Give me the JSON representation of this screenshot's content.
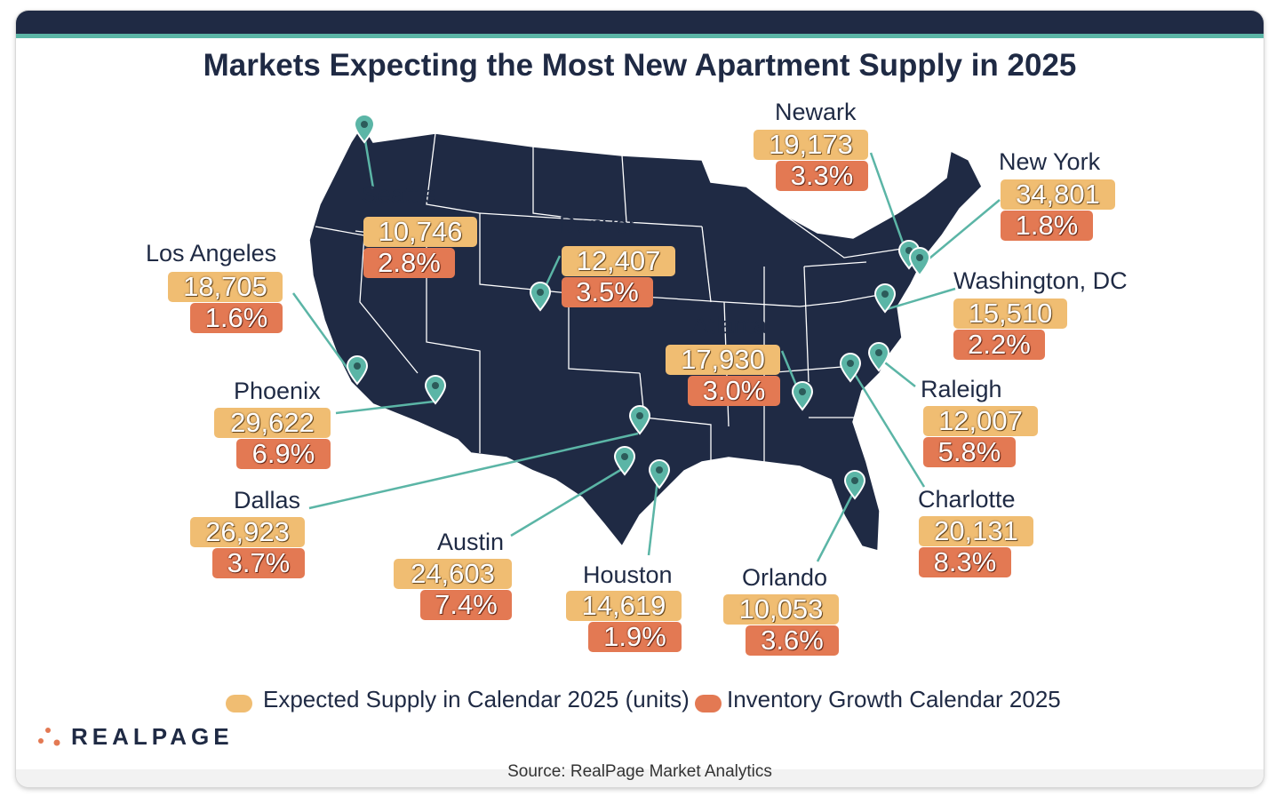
{
  "title": "Markets Expecting the Most New Apartment Supply in 2025",
  "colors": {
    "map_fill": "#1f2a44",
    "state_borders": "#ffffff",
    "marker": "#5bb5a6",
    "supply_pill": "#f0bd72",
    "growth_pill": "#e37953",
    "title_text": "#1f2a44"
  },
  "markets": [
    {
      "name": "Seattle",
      "supply": "10,746",
      "growth": "2.8%"
    },
    {
      "name": "Los Angeles",
      "supply": "18,705",
      "growth": "1.6%"
    },
    {
      "name": "Denver",
      "supply": "12,407",
      "growth": "3.5%"
    },
    {
      "name": "Phoenix",
      "supply": "29,622",
      "growth": "6.9%"
    },
    {
      "name": "Dallas",
      "supply": "26,923",
      "growth": "3.7%"
    },
    {
      "name": "Austin",
      "supply": "24,603",
      "growth": "7.4%"
    },
    {
      "name": "Houston",
      "supply": "14,619",
      "growth": "1.9%"
    },
    {
      "name": "Orlando",
      "supply": "10,053",
      "growth": "3.6%"
    },
    {
      "name": "Atlanta",
      "supply": "17,930",
      "growth": "3.0%"
    },
    {
      "name": "Charlotte",
      "supply": "20,131",
      "growth": "8.3%"
    },
    {
      "name": "Raleigh",
      "supply": "12,007",
      "growth": "5.8%"
    },
    {
      "name": "Washington, DC",
      "supply": "15,510",
      "growth": "2.2%"
    },
    {
      "name": "Newark",
      "supply": "19,173",
      "growth": "3.3%"
    },
    {
      "name": "New York",
      "supply": "34,801",
      "growth": "1.8%"
    }
  ],
  "legend": {
    "supply_label": "Expected Supply in Calendar 2025 (units)",
    "growth_label": "Inventory Growth Calendar 2025"
  },
  "logo": "REALPAGE",
  "source": "Source: RealPage Market Analytics",
  "marker_icon": "map-pin-icon"
}
